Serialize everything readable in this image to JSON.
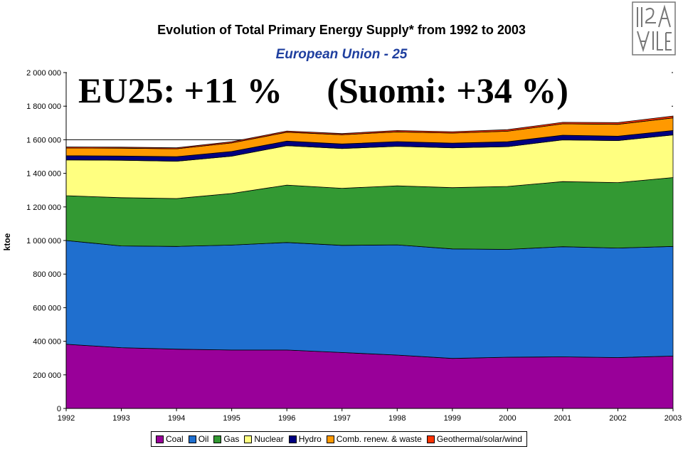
{
  "chart_data": {
    "type": "area",
    "stacked": true,
    "title": "Evolution of Total Primary Energy Supply* from 1992 to 2003",
    "subtitle": "European Union - 25",
    "annotation": "EU25: +11 %     (Suomi: +34 %)",
    "ylabel": "ktoe",
    "xlabel": "",
    "ylim": [
      0,
      2000000
    ],
    "yticks": [
      "0",
      "200 000",
      "400 000",
      "600 000",
      "800 000",
      "1 000 000",
      "1 200 000",
      "1 400 000",
      "1 600 000",
      "1 800 000",
      "2 000 000"
    ],
    "x": [
      "1992",
      "1993",
      "1994",
      "1995",
      "1996",
      "1997",
      "1998",
      "1999",
      "2000",
      "2001",
      "2002",
      "2003"
    ],
    "series": [
      {
        "name": "Coal",
        "color": "#990099",
        "values": [
          382000,
          362000,
          353000,
          348000,
          348000,
          333000,
          318000,
          298000,
          305000,
          307000,
          303000,
          312000
        ]
      },
      {
        "name": "Oil",
        "color": "#1f6fcf",
        "values": [
          618000,
          606000,
          612000,
          625000,
          640000,
          638000,
          656000,
          652000,
          642000,
          656000,
          652000,
          653000
        ]
      },
      {
        "name": "Gas",
        "color": "#339933",
        "values": [
          267000,
          287000,
          285000,
          307000,
          342000,
          340000,
          352000,
          365000,
          375000,
          388000,
          390000,
          410000
        ]
      },
      {
        "name": "Nuclear",
        "color": "#ffff80",
        "values": [
          213000,
          223000,
          222000,
          222000,
          235000,
          237000,
          235000,
          237000,
          237000,
          248000,
          250000,
          254000
        ]
      },
      {
        "name": "Hydro",
        "color": "#000080",
        "values": [
          25000,
          25000,
          27000,
          28000,
          27000,
          27000,
          28000,
          28000,
          29000,
          28000,
          26000,
          26000
        ]
      },
      {
        "name": "Comb. renew. & waste",
        "color": "#ff9900",
        "values": [
          46000,
          47000,
          47000,
          51000,
          53000,
          55000,
          58000,
          60000,
          63000,
          68000,
          71000,
          75000
        ]
      },
      {
        "name": "Geothermal/solar/wind",
        "color": "#ff3300",
        "values": [
          6000,
          6000,
          6000,
          7000,
          7000,
          7000,
          8000,
          8000,
          9000,
          9000,
          10000,
          11000
        ]
      }
    ],
    "grid": true,
    "legend": "bottom"
  }
}
